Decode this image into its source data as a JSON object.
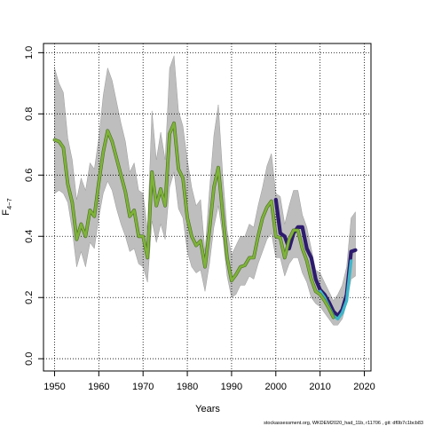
{
  "chart_data": {
    "type": "line",
    "title": "",
    "xlabel": "Years",
    "ylabel_main": "F",
    "ylabel_sub": "4−7",
    "xlim": [
      1947.5,
      2021.5
    ],
    "ylim": [
      -0.04,
      1.03
    ],
    "x_ticks": [
      1950,
      1960,
      1970,
      1980,
      1990,
      2000,
      2010,
      2020
    ],
    "x_tick_labels": [
      "1950",
      "1960",
      "1970",
      "1980",
      "1990",
      "2000",
      "2010",
      "2020"
    ],
    "y_ticks": [
      0.0,
      0.2,
      0.4,
      0.6,
      0.8,
      1.0
    ],
    "y_tick_labels": [
      "0.0",
      "0.2",
      "0.4",
      "0.6",
      "0.8",
      "1.0"
    ],
    "grid": "dotted",
    "footnote": "stockassessment.org,  WKDEM2020_had_11b,  r11706 ,  git:  df0b7c1bcb83",
    "colors": {
      "band": "#bebebe",
      "band_edge": "#8c8c8c",
      "series_dark": "#2d1b6e",
      "series_teal": "#3eb6c8",
      "series_main": "#7fb33a",
      "series_main_edge": "#4a6e23"
    },
    "band": {
      "x": [
        1950,
        1951,
        1952,
        1953,
        1954,
        1955,
        1956,
        1957,
        1958,
        1959,
        1960,
        1961,
        1962,
        1963,
        1964,
        1965,
        1966,
        1967,
        1968,
        1969,
        1970,
        1971,
        1972,
        1973,
        1974,
        1975,
        1976,
        1977,
        1978,
        1979,
        1980,
        1981,
        1982,
        1983,
        1984,
        1985,
        1986,
        1987,
        1988,
        1989,
        1990,
        1991,
        1992,
        1993,
        1994,
        1995,
        1996,
        1997,
        1998,
        1999,
        2000,
        2001,
        2002,
        2003,
        2004,
        2005,
        2006,
        2007,
        2008,
        2009,
        2010,
        2011,
        2012,
        2013,
        2014,
        2015,
        2016,
        2017,
        2018
      ],
      "upper": [
        0.95,
        0.9,
        0.87,
        0.72,
        0.65,
        0.52,
        0.59,
        0.55,
        0.64,
        0.62,
        0.72,
        0.86,
        0.95,
        0.91,
        0.84,
        0.77,
        0.71,
        0.61,
        0.64,
        0.55,
        0.54,
        0.42,
        0.81,
        0.65,
        0.74,
        0.65,
        0.95,
        0.99,
        0.81,
        0.76,
        0.65,
        0.56,
        0.5,
        0.52,
        0.35,
        0.55,
        0.73,
        0.83,
        0.6,
        0.42,
        0.34,
        0.37,
        0.4,
        0.4,
        0.44,
        0.43,
        0.5,
        0.56,
        0.63,
        0.67,
        0.54,
        0.53,
        0.44,
        0.5,
        0.55,
        0.55,
        0.47,
        0.43,
        0.36,
        0.29,
        0.28,
        0.25,
        0.22,
        0.19,
        0.21,
        0.24,
        0.3,
        0.46,
        0.48
      ],
      "lower": [
        0.54,
        0.55,
        0.54,
        0.51,
        0.42,
        0.3,
        0.35,
        0.3,
        0.38,
        0.36,
        0.46,
        0.54,
        0.58,
        0.55,
        0.49,
        0.44,
        0.4,
        0.35,
        0.36,
        0.31,
        0.3,
        0.25,
        0.45,
        0.38,
        0.44,
        0.39,
        0.56,
        0.61,
        0.49,
        0.46,
        0.35,
        0.3,
        0.28,
        0.29,
        0.22,
        0.31,
        0.43,
        0.5,
        0.4,
        0.27,
        0.2,
        0.21,
        0.24,
        0.24,
        0.27,
        0.26,
        0.31,
        0.35,
        0.39,
        0.41,
        0.33,
        0.33,
        0.27,
        0.31,
        0.33,
        0.33,
        0.28,
        0.25,
        0.2,
        0.18,
        0.17,
        0.15,
        0.13,
        0.11,
        0.11,
        0.13,
        0.18,
        0.26,
        0.27
      ]
    },
    "series": [
      {
        "x": [
          2000,
          2001,
          2002,
          2003,
          2004,
          2005,
          2006,
          2007,
          2008,
          2009,
          2010,
          2011,
          2012,
          2013,
          2014,
          2015,
          2016,
          2017,
          2018
        ],
        "values": [
          0.52,
          0.41,
          0.4,
          0.36,
          0.41,
          0.43,
          0.43,
          0.36,
          0.33,
          0.26,
          0.225,
          0.21,
          0.185,
          0.155,
          0.14,
          0.16,
          0.21,
          0.35,
          0.355
        ],
        "color": "#2d1b6e",
        "width": 4.2
      },
      {
        "x": [
          2010,
          2011,
          2012,
          2013,
          2014,
          2015,
          2016,
          2017
        ],
        "values": [
          0.22,
          0.2,
          0.17,
          0.14,
          0.13,
          0.15,
          0.19,
          0.32
        ],
        "color": "#3eb6c8",
        "width": 3.4
      },
      {
        "x": [
          1950,
          1951,
          1952,
          1953,
          1954,
          1955,
          1956,
          1957,
          1958,
          1959,
          1960,
          1961,
          1962,
          1963,
          1964,
          1965,
          1966,
          1967,
          1968,
          1969,
          1970,
          1971,
          1972,
          1973,
          1974,
          1975,
          1976,
          1977,
          1978,
          1979,
          1980,
          1981,
          1982,
          1983,
          1984,
          1985,
          1986,
          1987,
          1988,
          1989,
          1990,
          1991,
          1992,
          1993,
          1994,
          1995,
          1996,
          1997,
          1998,
          1999,
          2000,
          2001,
          2002,
          2003,
          2004,
          2005,
          2006,
          2007,
          2008,
          2009,
          2010,
          2011,
          2012,
          2013
        ],
        "values": [
          0.715,
          0.71,
          0.69,
          0.57,
          0.51,
          0.39,
          0.44,
          0.4,
          0.485,
          0.465,
          0.575,
          0.675,
          0.745,
          0.71,
          0.655,
          0.6,
          0.545,
          0.465,
          0.485,
          0.4,
          0.4,
          0.33,
          0.61,
          0.5,
          0.555,
          0.5,
          0.735,
          0.77,
          0.62,
          0.59,
          0.46,
          0.4,
          0.37,
          0.385,
          0.3,
          0.42,
          0.56,
          0.625,
          0.47,
          0.33,
          0.255,
          0.275,
          0.3,
          0.305,
          0.33,
          0.33,
          0.4,
          0.46,
          0.495,
          0.515,
          0.4,
          0.395,
          0.33,
          0.39,
          0.42,
          0.42,
          0.36,
          0.32,
          0.26,
          0.22,
          0.21,
          0.19,
          0.165,
          0.135
        ],
        "color": "#7fb33a",
        "width": 2.6
      }
    ]
  }
}
